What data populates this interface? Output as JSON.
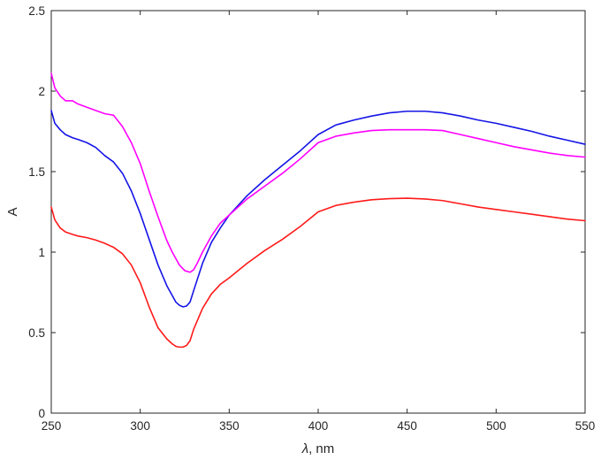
{
  "chart_data": {
    "type": "line",
    "xlabel_symbol": "λ",
    "xlabel_unit": ", nm",
    "ylabel": "A",
    "xlim": [
      250,
      550
    ],
    "ylim": [
      0,
      2.5
    ],
    "x_ticks": [
      250,
      300,
      350,
      400,
      450,
      500,
      550
    ],
    "y_ticks": [
      0,
      0.5,
      1,
      1.5,
      2,
      2.5
    ],
    "y_tick_labels": [
      "0",
      "0.5",
      "1",
      "1.5",
      "2",
      "2.5"
    ],
    "grid": false,
    "colors": {
      "axis": "#262626",
      "red": "#ff1a1a",
      "blue": "#1414e6",
      "magenta": "#ff00ff"
    },
    "series": [
      {
        "color": "#1414e6",
        "x": [
          250,
          252,
          255,
          258,
          262,
          265,
          270,
          275,
          280,
          285,
          290,
          295,
          300,
          305,
          310,
          315,
          318,
          320,
          322,
          324,
          326,
          328,
          330,
          335,
          340,
          345,
          350,
          360,
          370,
          380,
          390,
          400,
          410,
          420,
          430,
          440,
          450,
          460,
          470,
          480,
          490,
          500,
          510,
          520,
          530,
          540,
          550
        ],
        "y": [
          1.88,
          1.8,
          1.76,
          1.73,
          1.71,
          1.7,
          1.68,
          1.65,
          1.6,
          1.56,
          1.49,
          1.38,
          1.24,
          1.08,
          0.92,
          0.79,
          0.73,
          0.69,
          0.67,
          0.66,
          0.665,
          0.69,
          0.76,
          0.93,
          1.06,
          1.15,
          1.23,
          1.35,
          1.45,
          1.54,
          1.63,
          1.73,
          1.79,
          1.82,
          1.845,
          1.865,
          1.875,
          1.875,
          1.865,
          1.845,
          1.82,
          1.8,
          1.775,
          1.75,
          1.72,
          1.695,
          1.67
        ]
      },
      {
        "color": "#ff00ff",
        "x": [
          250,
          252,
          255,
          258,
          262,
          265,
          270,
          275,
          280,
          285,
          290,
          295,
          300,
          305,
          310,
          315,
          318,
          320,
          322,
          325,
          328,
          330,
          332,
          335,
          340,
          345,
          350,
          360,
          370,
          380,
          390,
          400,
          410,
          420,
          430,
          440,
          450,
          460,
          470,
          480,
          490,
          500,
          510,
          520,
          530,
          540,
          550
        ],
        "y": [
          2.11,
          2.02,
          1.97,
          1.94,
          1.94,
          1.92,
          1.9,
          1.88,
          1.86,
          1.85,
          1.78,
          1.68,
          1.55,
          1.38,
          1.22,
          1.07,
          1.0,
          0.96,
          0.92,
          0.885,
          0.875,
          0.89,
          0.93,
          1.0,
          1.1,
          1.18,
          1.23,
          1.33,
          1.41,
          1.49,
          1.58,
          1.68,
          1.72,
          1.74,
          1.755,
          1.76,
          1.76,
          1.76,
          1.755,
          1.73,
          1.705,
          1.68,
          1.655,
          1.635,
          1.615,
          1.6,
          1.59
        ]
      },
      {
        "color": "#ff1a1a",
        "x": [
          250,
          252,
          255,
          258,
          262,
          265,
          270,
          275,
          280,
          285,
          290,
          295,
          300,
          305,
          310,
          315,
          318,
          320,
          322,
          324,
          326,
          328,
          330,
          335,
          340,
          345,
          350,
          360,
          370,
          380,
          390,
          400,
          410,
          420,
          430,
          440,
          450,
          460,
          470,
          480,
          490,
          500,
          510,
          520,
          530,
          540,
          550
        ],
        "y": [
          1.28,
          1.2,
          1.15,
          1.125,
          1.11,
          1.1,
          1.09,
          1.075,
          1.055,
          1.03,
          0.99,
          0.92,
          0.81,
          0.66,
          0.53,
          0.46,
          0.43,
          0.415,
          0.41,
          0.41,
          0.42,
          0.45,
          0.52,
          0.65,
          0.74,
          0.8,
          0.84,
          0.93,
          1.01,
          1.08,
          1.16,
          1.25,
          1.29,
          1.31,
          1.325,
          1.332,
          1.335,
          1.33,
          1.32,
          1.3,
          1.28,
          1.265,
          1.25,
          1.235,
          1.22,
          1.205,
          1.195
        ]
      }
    ]
  }
}
